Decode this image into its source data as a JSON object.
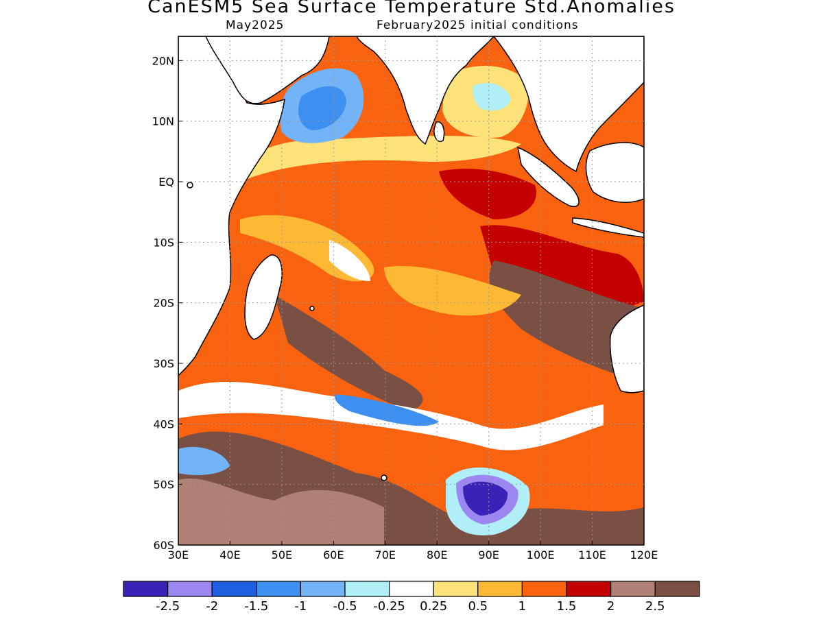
{
  "title": "CanESM5 Sea Surface Temperature Std.Anomalies",
  "subtitle_left": "May2025",
  "subtitle_right": "February2025 initial conditions",
  "map": {
    "lon_range": [
      30,
      120
    ],
    "lat_range": [
      -60,
      24
    ],
    "x_ticks": [
      {
        "lon": 30,
        "label": "30E"
      },
      {
        "lon": 40,
        "label": "40E"
      },
      {
        "lon": 50,
        "label": "50E"
      },
      {
        "lon": 60,
        "label": "60E"
      },
      {
        "lon": 70,
        "label": "70E"
      },
      {
        "lon": 80,
        "label": "80E"
      },
      {
        "lon": 90,
        "label": "90E"
      },
      {
        "lon": 100,
        "label": "100E"
      },
      {
        "lon": 110,
        "label": "110E"
      },
      {
        "lon": 120,
        "label": "120E"
      }
    ],
    "y_ticks": [
      {
        "lat": 20,
        "label": "20N"
      },
      {
        "lat": 10,
        "label": "10N"
      },
      {
        "lat": 0,
        "label": "EQ"
      },
      {
        "lat": -10,
        "label": "10S"
      },
      {
        "lat": -20,
        "label": "20S"
      },
      {
        "lat": -30,
        "label": "30S"
      },
      {
        "lat": -40,
        "label": "40S"
      },
      {
        "lat": -50,
        "label": "50S"
      },
      {
        "lat": -60,
        "label": "60S"
      }
    ],
    "grid": "dotted",
    "land_color": "#ffffff"
  },
  "colorbar": {
    "colors": [
      "#3a22b8",
      "#9b86f2",
      "#1e5fe0",
      "#3d8ff0",
      "#73b4f8",
      "#b0eef8",
      "#ffffff",
      "#fde27a",
      "#fdb934",
      "#f9620f",
      "#c40000",
      "#b08074",
      "#7a5045"
    ],
    "labels": [
      "-2.5",
      "-2",
      "-1.5",
      "-1",
      "-0.5",
      "-0.25",
      "0.25",
      "0.5",
      "1",
      "1.5",
      "2",
      "2.5"
    ]
  }
}
